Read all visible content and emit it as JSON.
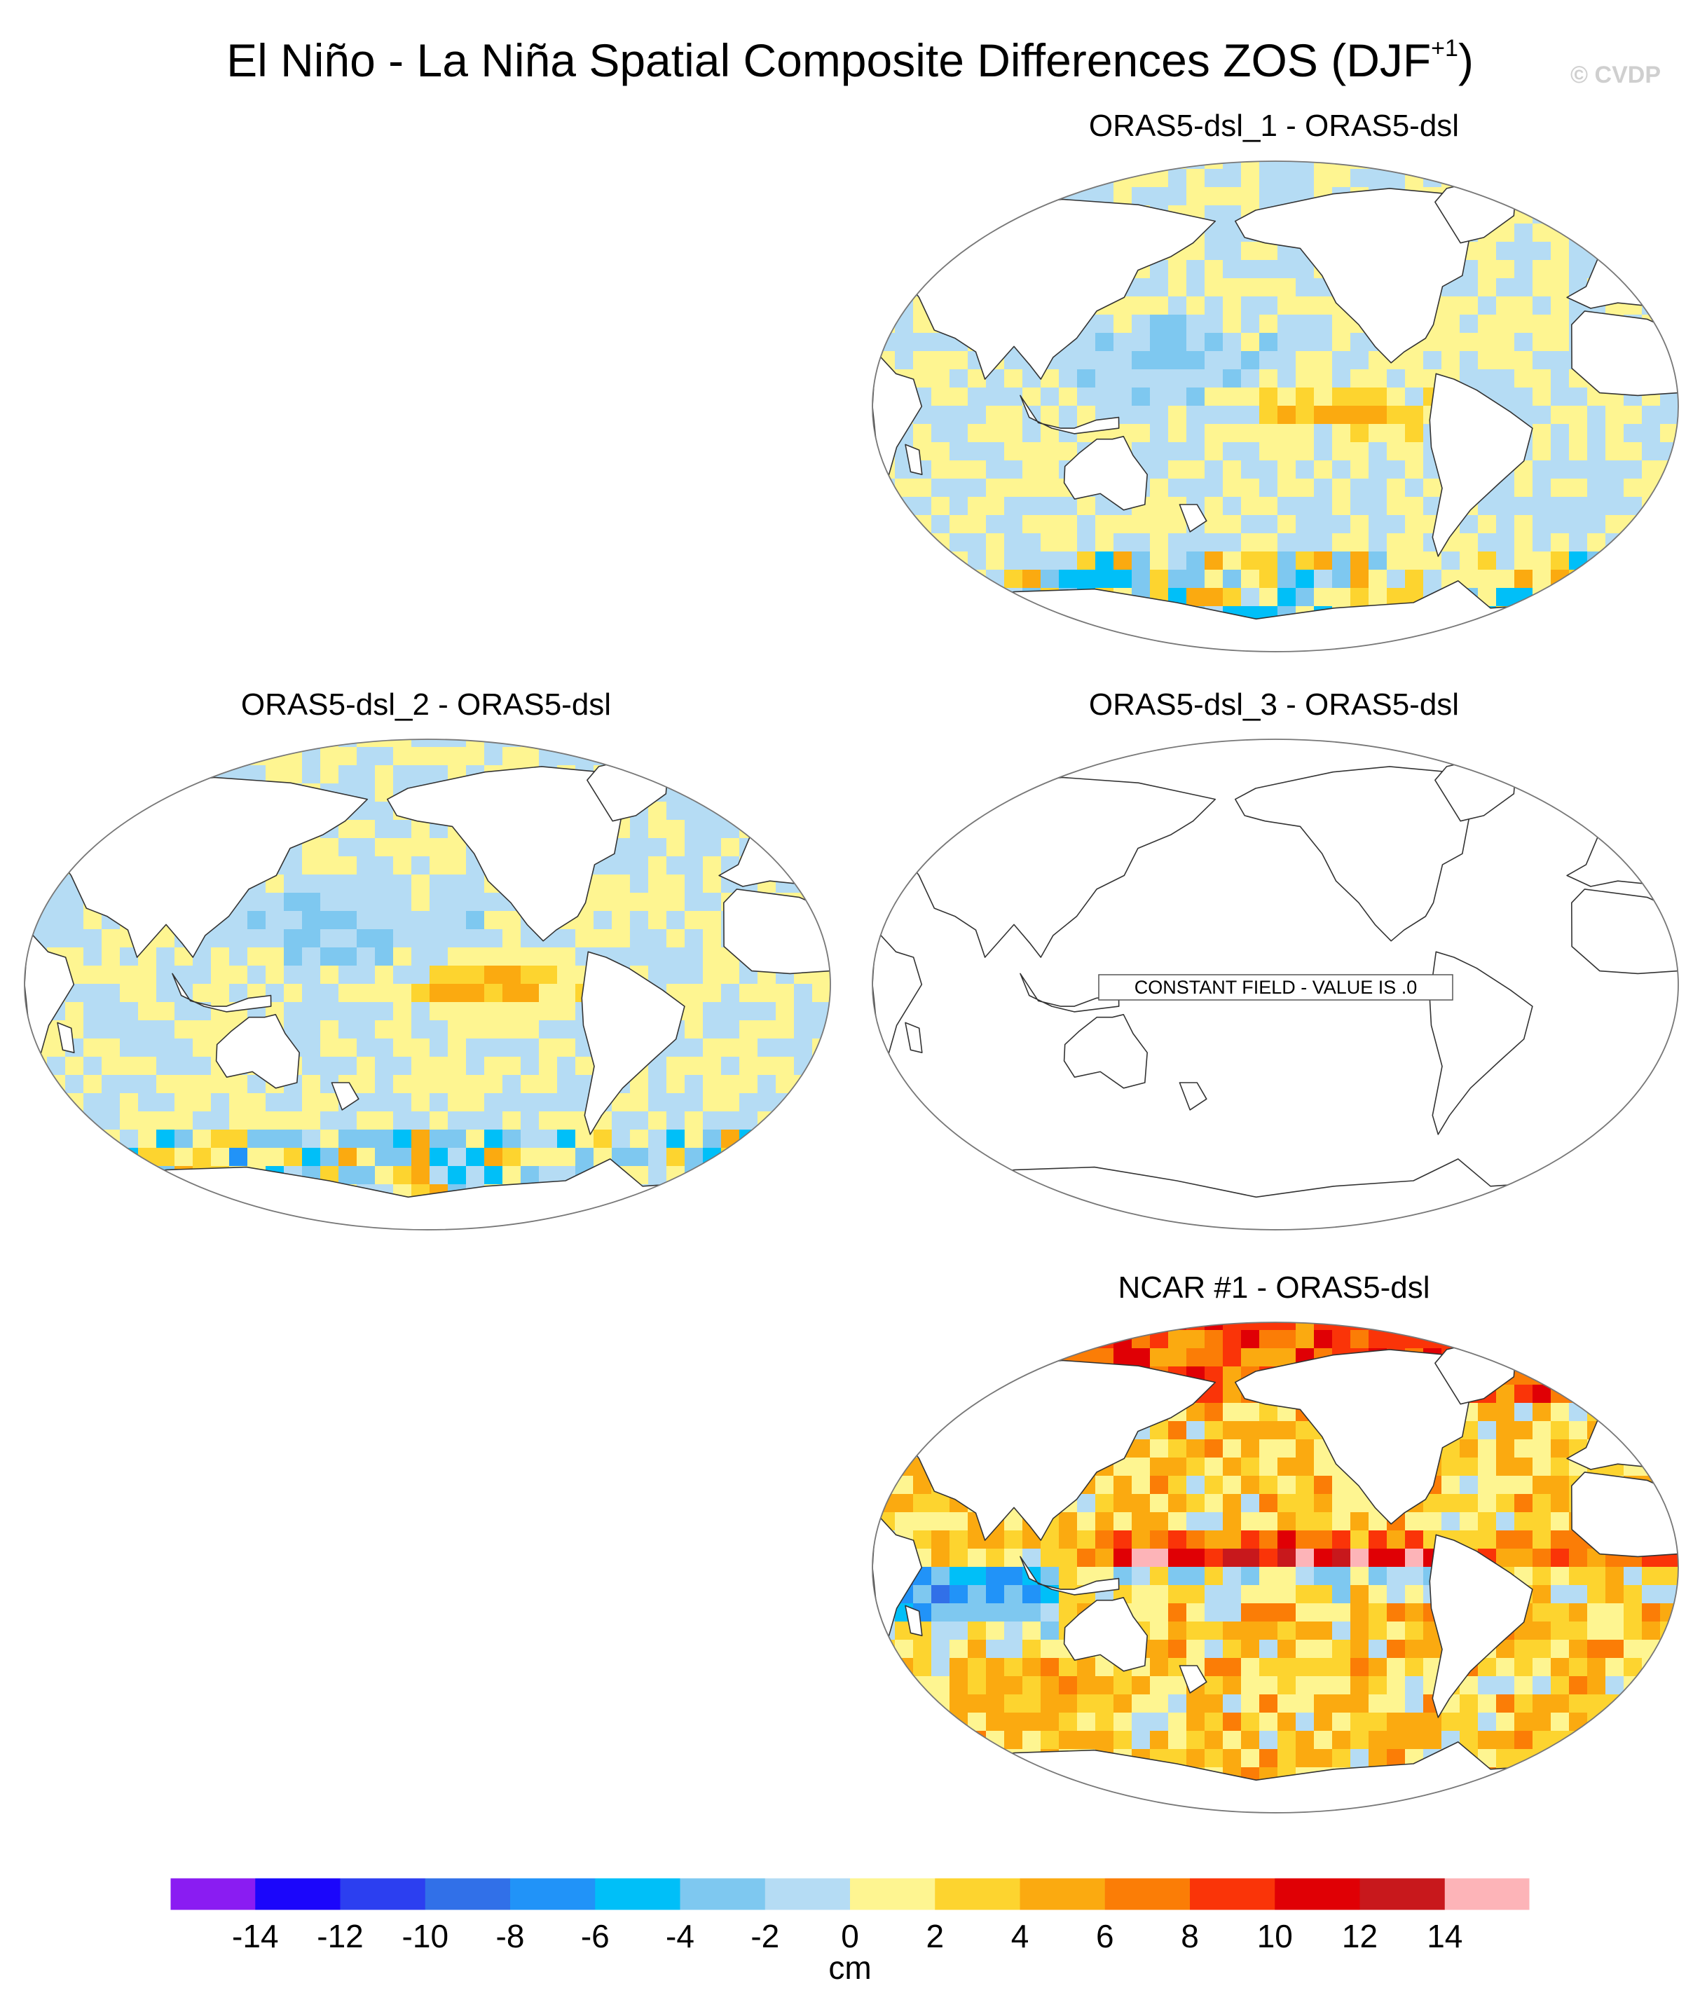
{
  "figure": {
    "title": "El Niño - La Niña Spatial Composite Differences ZOS (DJF",
    "title_sup": "+1",
    "title_close": ")",
    "copyright": "© CVDP"
  },
  "panels": [
    {
      "id": "p1",
      "title": "ORAS5-dsl_1 - ORAS5-dsl",
      "style": "weak",
      "seed": 11
    },
    {
      "id": "p2",
      "title": "ORAS5-dsl_2 - ORAS5-dsl",
      "style": "weak",
      "seed": 23
    },
    {
      "id": "p3",
      "title": "ORAS5-dsl_3 - ORAS5-dsl",
      "style": "constant",
      "seed": 0,
      "message": "CONSTANT FIELD - VALUE IS .0"
    },
    {
      "id": "p4",
      "title": "NCAR #1 - ORAS5-dsl",
      "style": "strong",
      "seed": 37
    }
  ],
  "colorbar": {
    "colors": [
      "#8a1cf2",
      "#1b06fb",
      "#2c3ff0",
      "#3170e8",
      "#2193f8",
      "#00bff8",
      "#7ec8f0",
      "#b5dcf4",
      "#fef591",
      "#fdd42f",
      "#fbaa10",
      "#fb7d06",
      "#fa3408",
      "#e00005",
      "#c8181c",
      "#fdb4b8"
    ],
    "tick_labels": [
      "-14",
      "-12",
      "-10",
      "-8",
      "-6",
      "-4",
      "-2",
      "0",
      "2",
      "4",
      "6",
      "8",
      "10",
      "12",
      "14"
    ],
    "units": "cm"
  }
}
